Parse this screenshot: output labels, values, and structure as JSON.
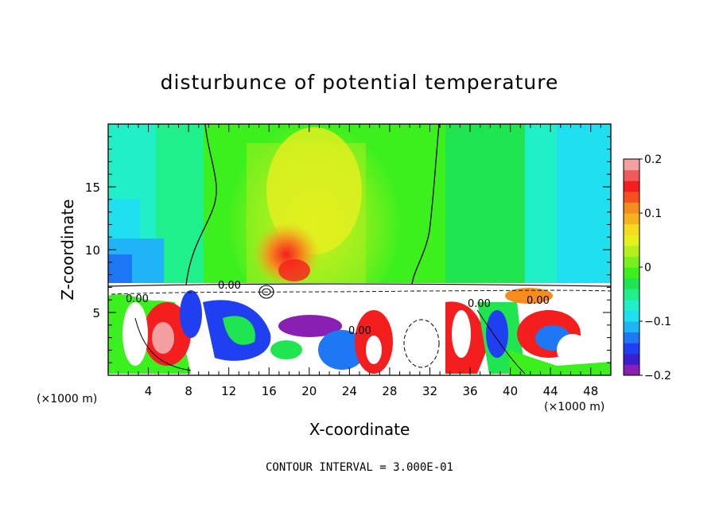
{
  "chart_data": {
    "type": "heatmap",
    "title": "disturbunce of potential temperature",
    "xlabel": "X-coordinate",
    "ylabel": "Z-coordinate",
    "x_unit_label_left": "(×1000 m)",
    "x_unit_label_right": "(×1000 m)",
    "xlim": [
      0,
      50
    ],
    "ylim": [
      0,
      20
    ],
    "x_ticks": [
      4,
      8,
      12,
      16,
      20,
      24,
      28,
      32,
      36,
      40,
      44,
      48
    ],
    "y_ticks": [
      5,
      10,
      15
    ],
    "colorbar": {
      "range": [
        -0.2,
        0.2
      ],
      "tick_labels": [
        "0.2",
        "0.1",
        "0",
        "−0.1",
        "−0.2"
      ],
      "tick_values": [
        0.2,
        0.1,
        0,
        -0.1,
        -0.2
      ],
      "colors": [
        "#8a1fb4",
        "#3a1fd0",
        "#1f3ff0",
        "#1e78f5",
        "#1fb4f5",
        "#1fe0f0",
        "#1ff0c8",
        "#1ff08c",
        "#1fe650",
        "#3cf01e",
        "#78f01e",
        "#b4f01e",
        "#e6f01e",
        "#f5dc1e",
        "#f5b41e",
        "#f58c1e",
        "#f5501e",
        "#f51e1e",
        "#f05a5a",
        "#f5a0a0"
      ]
    },
    "contour_labels": [
      "0.00",
      "0.00",
      "0.00",
      "0.00",
      "0.00"
    ],
    "footer": "CONTOUR INTERVAL = 3.000E-01"
  }
}
